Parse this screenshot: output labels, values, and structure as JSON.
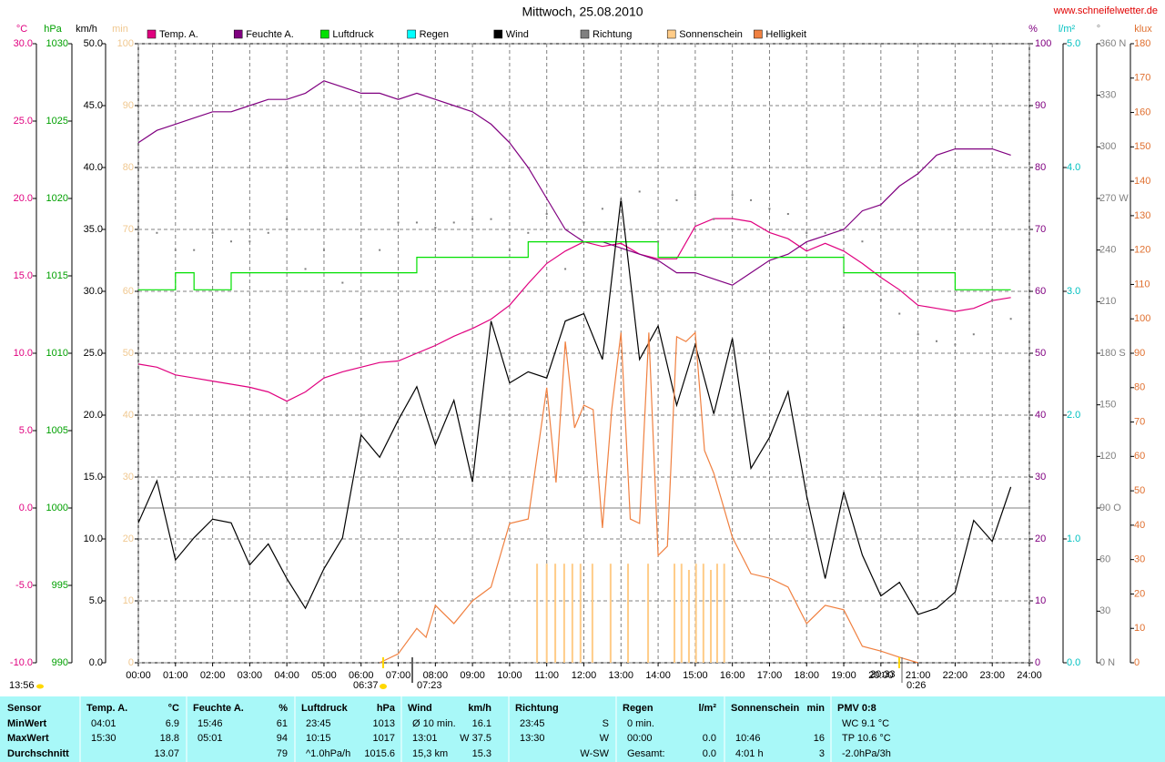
{
  "chart_data": {
    "type": "line",
    "title": "Mittwoch, 25.08.2010",
    "source": "www.schneifelwetter.de",
    "grid": true,
    "x": [
      0,
      0.5,
      1,
      1.5,
      2,
      2.5,
      3,
      3.5,
      4,
      4.5,
      5,
      5.5,
      6,
      6.5,
      7,
      7.5,
      8,
      8.5,
      9,
      9.5,
      10,
      10.5,
      11,
      11.5,
      12,
      12.5,
      13,
      13.5,
      14,
      14.5,
      15,
      15.5,
      16,
      16.5,
      17,
      17.5,
      18,
      18.5,
      19,
      19.5,
      20,
      20.5,
      21,
      21.5,
      22,
      22.5,
      23,
      23.5
    ],
    "xlim": [
      0,
      24
    ],
    "xticks": [
      {
        "value": 0,
        "label": "00:00"
      },
      {
        "value": 1,
        "label": "01:00"
      },
      {
        "value": 2,
        "label": "02:00"
      },
      {
        "value": 3,
        "label": "03:00"
      },
      {
        "value": 4,
        "label": "04:00"
      },
      {
        "value": 5,
        "label": "05:00"
      },
      {
        "value": 6,
        "label": "06:00"
      },
      {
        "value": 7,
        "label": "07:00"
      },
      {
        "value": 8,
        "label": "08:00"
      },
      {
        "value": 9,
        "label": "09:00"
      },
      {
        "value": 10,
        "label": "10:00"
      },
      {
        "value": 11,
        "label": "11:00"
      },
      {
        "value": 12,
        "label": "12:00"
      },
      {
        "value": 13,
        "label": "13:00"
      },
      {
        "value": 14,
        "label": "14:00"
      },
      {
        "value": 15,
        "label": "15:00"
      },
      {
        "value": 16,
        "label": "16:00"
      },
      {
        "value": 17,
        "label": "17:00"
      },
      {
        "value": 18,
        "label": "18:00"
      },
      {
        "value": 19,
        "label": "19:00"
      },
      {
        "value": 20,
        "label": "20:00"
      },
      {
        "value": 21,
        "label": "21:00"
      },
      {
        "value": 22,
        "label": "22:00"
      },
      {
        "value": 23,
        "label": "23:00"
      },
      {
        "value": 24,
        "label": "24:00"
      }
    ],
    "axes": [
      {
        "unit": "°C",
        "color": "#e0007f",
        "lim": [
          -10,
          30
        ],
        "ticks": [
          {
            "value": -10,
            "label": "-10.0"
          },
          {
            "value": -5,
            "label": "-5.0"
          },
          {
            "value": 0,
            "label": "0.0"
          },
          {
            "value": 5,
            "label": "5.0"
          },
          {
            "value": 10,
            "label": "10.0"
          },
          {
            "value": 15,
            "label": "15.0"
          },
          {
            "value": 20,
            "label": "20.0"
          },
          {
            "value": 25,
            "label": "25.0"
          },
          {
            "value": 30,
            "label": "30.0"
          }
        ]
      },
      {
        "unit": "hPa",
        "color": "#00a000",
        "lim": [
          990,
          1030
        ],
        "ticks": [
          990,
          995,
          1000,
          1005,
          1010,
          1015,
          1020,
          1025,
          1030
        ]
      },
      {
        "unit": "km/h",
        "color": "#000000",
        "lim": [
          0,
          50
        ],
        "ticks": [
          {
            "value": 0,
            "label": "0.0"
          },
          {
            "value": 5,
            "label": "5.0"
          },
          {
            "value": 10,
            "label": "10.0"
          },
          {
            "value": 15,
            "label": "15.0"
          },
          {
            "value": 20,
            "label": "20.0"
          },
          {
            "value": 25,
            "label": "25.0"
          },
          {
            "value": 30,
            "label": "30.0"
          },
          {
            "value": 35,
            "label": "35.0"
          },
          {
            "value": 40,
            "label": "40.0"
          },
          {
            "value": 45,
            "label": "45.0"
          },
          {
            "value": 50,
            "label": "50.0"
          }
        ]
      },
      {
        "unit": "min",
        "color": "#f0c890",
        "lim": [
          0,
          100
        ],
        "ticks": [
          0,
          10,
          20,
          30,
          40,
          50,
          60,
          70,
          80,
          90,
          100
        ]
      },
      {
        "unit": "%",
        "color": "#800080",
        "lim": [
          0,
          100
        ],
        "ticks": [
          0,
          10,
          20,
          30,
          40,
          50,
          60,
          70,
          80,
          90,
          100
        ]
      },
      {
        "unit": "l/m²",
        "color": "#00c0c0",
        "lim": [
          0,
          5
        ],
        "ticks": [
          {
            "value": 0,
            "label": "0.0"
          },
          {
            "value": 1,
            "label": "1.0"
          },
          {
            "value": 2,
            "label": "2.0"
          },
          {
            "value": 3,
            "label": "3.0"
          },
          {
            "value": 4,
            "label": "4.0"
          },
          {
            "value": 5,
            "label": "5.0"
          }
        ]
      },
      {
        "unit": "°",
        "color": "#808080",
        "lim": [
          0,
          360
        ],
        "ticks": [
          {
            "value": 0,
            "label": "0 N"
          },
          30,
          60,
          {
            "value": 90,
            "label": "90 O"
          },
          120,
          150,
          {
            "value": 180,
            "label": "180 S"
          },
          210,
          240,
          {
            "value": 270,
            "label": "270 W"
          },
          300,
          330,
          {
            "value": 360,
            "label": "360 N"
          }
        ]
      },
      {
        "unit": "klux",
        "color": "#e07030",
        "lim": [
          0,
          180
        ],
        "ticks": [
          0,
          10,
          20,
          30,
          40,
          50,
          60,
          70,
          80,
          90,
          100,
          110,
          120,
          130,
          140,
          150,
          160,
          170,
          180
        ]
      }
    ],
    "series": [
      {
        "name": "Temp. A.",
        "color": "#e0007f",
        "axis": "°C",
        "type": "line",
        "values": [
          9.3,
          9.1,
          8.6,
          8.4,
          8.2,
          8.0,
          7.8,
          7.5,
          6.9,
          7.5,
          8.4,
          8.8,
          9.1,
          9.4,
          9.5,
          10.0,
          10.5,
          11.1,
          11.6,
          12.2,
          13.1,
          14.5,
          15.8,
          16.6,
          17.2,
          16.9,
          17.1,
          16.4,
          16.1,
          16.1,
          18.2,
          18.7,
          18.7,
          18.5,
          17.8,
          17.4,
          16.6,
          17.1,
          16.6,
          15.8,
          14.9,
          14.1,
          13.1,
          12.9,
          12.7,
          12.9,
          13.4,
          13.6
        ]
      },
      {
        "name": "Feuchte A.",
        "color": "#800080",
        "axis": "%",
        "type": "line",
        "values": [
          84,
          86,
          87,
          88,
          89,
          89,
          90,
          91,
          91,
          92,
          94,
          93,
          92,
          92,
          91,
          92,
          91,
          90,
          89,
          87,
          84,
          80,
          75,
          70,
          68,
          68,
          67,
          66,
          65,
          63,
          63,
          62,
          61,
          63,
          65,
          66,
          68,
          69,
          70,
          73,
          74,
          77,
          79,
          82,
          83,
          83,
          83,
          82
        ]
      },
      {
        "name": "Luftdruck",
        "color": "#00e000",
        "axis": "hPa",
        "type": "line",
        "step": true,
        "values": [
          1014.1,
          1014.1,
          1015.2,
          1014.1,
          1014.1,
          1015.2,
          1015.2,
          1015.2,
          1015.2,
          1015.2,
          1015.2,
          1015.2,
          1015.2,
          1015.2,
          1015.2,
          1016.2,
          1016.2,
          1016.2,
          1016.2,
          1016.2,
          1016.2,
          1017.2,
          1017.2,
          1017.2,
          1017.2,
          1017.2,
          1017.2,
          1017.2,
          1016.2,
          1016.2,
          1016.2,
          1016.2,
          1016.2,
          1016.2,
          1016.2,
          1016.2,
          1016.2,
          1016.2,
          1015.2,
          1015.2,
          1015.2,
          1015.2,
          1015.2,
          1015.2,
          1014.1,
          1014.1,
          1014.1,
          1014.1
        ]
      },
      {
        "name": "Regen",
        "color": "#00ffff",
        "axis": "l/m²",
        "type": "line"
      },
      {
        "name": "Wind",
        "color": "#000000",
        "axis": "km/h",
        "type": "line",
        "values": [
          11.3,
          14.7,
          8.3,
          10.1,
          11.6,
          11.3,
          7.9,
          9.6,
          6.8,
          4.4,
          7.6,
          10.1,
          18.4,
          16.6,
          19.6,
          22.3,
          17.6,
          21.2,
          14.6,
          27.6,
          22.6,
          23.5,
          23.0,
          27.6,
          28.2,
          24.5,
          37.5,
          24.5,
          27.2,
          20.8,
          25.7,
          20.1,
          26.2,
          15.7,
          18.2,
          21.9,
          13.5,
          6.8,
          13.8,
          8.7,
          5.4,
          6.5,
          3.9,
          4.4,
          5.7,
          11.5,
          9.8,
          14.2
        ]
      },
      {
        "name": "Richtung",
        "color": "#808080",
        "axis": "°",
        "type": "scatter",
        "values": [
          235,
          250,
          240,
          240,
          250,
          245,
          245,
          250,
          258,
          229,
          240,
          221,
          200,
          240,
          256,
          256,
          253,
          256,
          258,
          258,
          240,
          250,
          261,
          229,
          256,
          264,
          269,
          274,
          245,
          269,
          272,
          258,
          272,
          269,
          264,
          261,
          250,
          250,
          195,
          245,
          211,
          203,
          191,
          187,
          185,
          191,
          211,
          200
        ]
      },
      {
        "name": "Sonnenschein",
        "color": "#ffcc88",
        "axis": "min",
        "type": "bar",
        "x": [
          10.74,
          11.0,
          11.23,
          11.47,
          11.69,
          11.91,
          12.23,
          12.72,
          13.19,
          13.73,
          14.44,
          14.63,
          14.83,
          15.02,
          15.22,
          15.42,
          15.59,
          15.78
        ],
        "values": [
          16,
          16,
          16,
          16,
          16,
          16,
          16,
          16,
          16,
          16,
          16,
          16,
          15,
          16,
          16,
          15,
          16,
          16
        ]
      },
      {
        "name": "Helligkeit",
        "color": "#f08040",
        "axis": "klux",
        "type": "line",
        "x": [
          6.5,
          7,
          7.5,
          7.75,
          8,
          8.5,
          9,
          9.5,
          10,
          10.5,
          11,
          11.25,
          11.5,
          11.75,
          12,
          12.25,
          12.5,
          12.75,
          13,
          13.25,
          13.5,
          13.75,
          14,
          14.25,
          14.5,
          14.75,
          15,
          15.25,
          15.5,
          16,
          16.5,
          17,
          17.5,
          18,
          18.5,
          19,
          19.5,
          20,
          20.5,
          21
        ],
        "values": [
          0,
          2.6,
          10,
          7.4,
          16.7,
          11.4,
          18,
          22,
          40.5,
          41.8,
          80,
          52.4,
          93.4,
          68.3,
          74.9,
          73.6,
          39.2,
          73.6,
          96,
          41.8,
          40.5,
          96,
          31.2,
          33.9,
          94.8,
          93.4,
          96,
          61.7,
          55.1,
          36.5,
          25.9,
          24.6,
          22,
          11.4,
          16.7,
          15.4,
          4.8,
          3.4,
          1.6,
          0
        ]
      }
    ],
    "annotations": [
      "13:56",
      "06:37",
      "07:23",
      "20:33",
      "0:26"
    ]
  },
  "table": {
    "columns": [
      {
        "header": "Sensor",
        "rows": [
          {
            "left": "MinWert"
          },
          {
            "left": "MaxWert"
          },
          {
            "left": "Durchschnitt"
          }
        ]
      },
      {
        "header": "Temp. A.",
        "unit": "°C",
        "rows": [
          {
            "left": "04:01",
            "right": "6.9"
          },
          {
            "left": "15:30",
            "right": "18.8"
          },
          {
            "right": "13.07"
          }
        ]
      },
      {
        "header": "Feuchte A.",
        "unit": "%",
        "rows": [
          {
            "left": "15:46",
            "right": "61"
          },
          {
            "left": "05:01",
            "right": "94"
          },
          {
            "right": "79"
          }
        ]
      },
      {
        "header": "Luftdruck",
        "unit": "hPa",
        "rows": [
          {
            "left": "23:45",
            "right": "1013"
          },
          {
            "left": "10:15",
            "right": "1017"
          },
          {
            "left": "^1.0hPa/h",
            "right": "1015.6"
          }
        ]
      },
      {
        "header": "Wind",
        "unit": "km/h",
        "rows": [
          {
            "left": "Ø 10 min.",
            "right": "16.1"
          },
          {
            "left": "13:01",
            "right": "W 37.5"
          },
          {
            "left": "15,3 km",
            "right": "15.3"
          }
        ]
      },
      {
        "header": "Richtung",
        "rows": [
          {
            "left": "23:45",
            "right": "S"
          },
          {
            "left": "13:30",
            "right": "W"
          },
          {
            "right": "W-SW"
          }
        ]
      },
      {
        "header": "Regen",
        "unit": "l/m²",
        "rows": [
          {
            "left": "0 min."
          },
          {
            "left": "00:00",
            "right": "0.0"
          },
          {
            "left": "Gesamt:",
            "right": "0.0"
          }
        ]
      },
      {
        "header": "Sonnenschein",
        "unit": "min",
        "rows": [
          {},
          {
            "left": "10:46",
            "right": "16"
          },
          {
            "left": "4:01 h",
            "right": "3"
          }
        ]
      },
      {
        "header": "PMV 0:8",
        "rows": [
          {
            "left": "WC 9.1 °C"
          },
          {
            "left": "TP 10.6 °C"
          },
          {
            "left": "-2.0hPa/3h"
          }
        ]
      }
    ]
  }
}
